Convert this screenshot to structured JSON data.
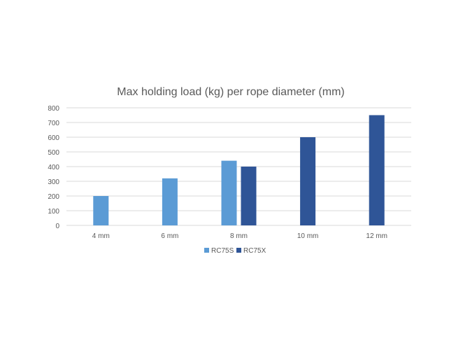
{
  "chart_data": {
    "type": "bar",
    "title": "Max holding load (kg) per rope diameter (mm)",
    "xlabel": "",
    "ylabel": "",
    "categories": [
      "4 mm",
      "6 mm",
      "8 mm",
      "10 mm",
      "12 mm"
    ],
    "series": [
      {
        "name": "RC75S",
        "color": "#5b9bd5",
        "values": [
          200,
          320,
          440,
          null,
          null
        ]
      },
      {
        "name": "RC75X",
        "color": "#2f5597",
        "values": [
          null,
          null,
          400,
          600,
          750
        ]
      }
    ],
    "ylim": [
      0,
      800
    ],
    "yticks": [
      "0",
      "100",
      "200",
      "300",
      "400",
      "500",
      "600",
      "700",
      "800"
    ],
    "grid": true,
    "legend_position": "bottom"
  }
}
